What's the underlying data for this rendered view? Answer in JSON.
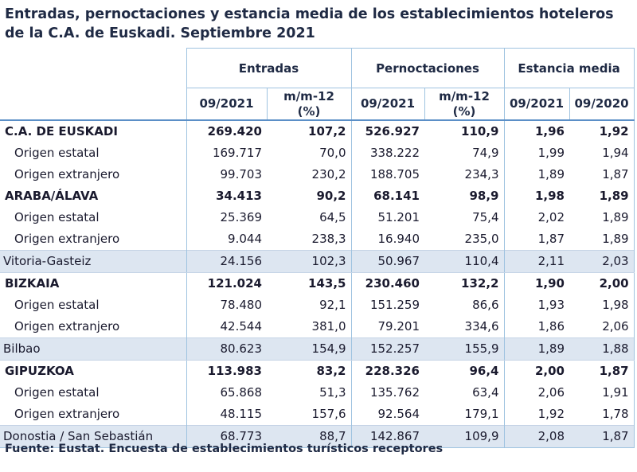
{
  "title_line1": "Entradas, pernoctaciones y estancia media de los establecimientos hoteleros",
  "title_line2": "de la C.A. de Euskadi.  Septiembre 2021",
  "headers": {
    "entradas": "Entradas",
    "pernoctaciones": "Pernoctaciones",
    "estancia": "Estancia media",
    "ent_period": "09/2021",
    "ent_change_l1": "m/m-12",
    "ent_change_l2": "(%)",
    "per_period": "09/2021",
    "per_change_l1": "m/m-12",
    "per_change_l2": "(%)",
    "est_2021": "09/2021",
    "est_2020": "09/2020"
  },
  "rows": [
    {
      "label": "C.A. DE EUSKADI",
      "type": "region",
      "e": "269.420",
      "em": "107,2",
      "p": "526.927",
      "pm": "110,9",
      "s21": "1,96",
      "s20": "1,92"
    },
    {
      "label": "Origen estatal",
      "type": "sub",
      "e": "169.717",
      "em": "70,0",
      "p": "338.222",
      "pm": "74,9",
      "s21": "1,99",
      "s20": "1,94"
    },
    {
      "label": "Origen extranjero",
      "type": "sub",
      "e": "99.703",
      "em": "230,2",
      "p": "188.705",
      "pm": "234,3",
      "s21": "1,89",
      "s20": "1,87"
    },
    {
      "label": "ARABA/ÁLAVA",
      "type": "region",
      "e": "34.413",
      "em": "90,2",
      "p": "68.141",
      "pm": "98,9",
      "s21": "1,98",
      "s20": "1,89"
    },
    {
      "label": "Origen estatal",
      "type": "sub",
      "e": "25.369",
      "em": "64,5",
      "p": "51.201",
      "pm": "75,4",
      "s21": "2,02",
      "s20": "1,89"
    },
    {
      "label": "Origen extranjero",
      "type": "sub",
      "e": "9.044",
      "em": "238,3",
      "p": "16.940",
      "pm": "235,0",
      "s21": "1,87",
      "s20": "1,89"
    },
    {
      "label": "Vitoria-Gasteiz",
      "type": "city",
      "e": "24.156",
      "em": "102,3",
      "p": "50.967",
      "pm": "110,4",
      "s21": "2,11",
      "s20": "2,03"
    },
    {
      "label": "BIZKAIA",
      "type": "region",
      "e": "121.024",
      "em": "143,5",
      "p": "230.460",
      "pm": "132,2",
      "s21": "1,90",
      "s20": "2,00"
    },
    {
      "label": "Origen estatal",
      "type": "sub",
      "e": "78.480",
      "em": "92,1",
      "p": "151.259",
      "pm": "86,6",
      "s21": "1,93",
      "s20": "1,98"
    },
    {
      "label": "Origen extranjero",
      "type": "sub",
      "e": "42.544",
      "em": "381,0",
      "p": "79.201",
      "pm": "334,6",
      "s21": "1,86",
      "s20": "2,06"
    },
    {
      "label": "Bilbao",
      "type": "city",
      "e": "80.623",
      "em": "154,9",
      "p": "152.257",
      "pm": "155,9",
      "s21": "1,89",
      "s20": "1,88"
    },
    {
      "label": "GIPUZKOA",
      "type": "region",
      "e": "113.983",
      "em": "83,2",
      "p": "228.326",
      "pm": "96,4",
      "s21": "2,00",
      "s20": "1,87"
    },
    {
      "label": "Origen estatal",
      "type": "sub",
      "e": "65.868",
      "em": "51,3",
      "p": "135.762",
      "pm": "63,4",
      "s21": "2,06",
      "s20": "1,91"
    },
    {
      "label": "Origen extranjero",
      "type": "sub",
      "e": "48.115",
      "em": "157,6",
      "p": "92.564",
      "pm": "179,1",
      "s21": "1,92",
      "s20": "1,78"
    },
    {
      "label": "Donostia / San Sebastián",
      "type": "city",
      "e": "68.773",
      "em": "88,7",
      "p": "142.867",
      "pm": "109,9",
      "s21": "2,08",
      "s20": "1,87"
    }
  ],
  "source": "Fuente: Eustat. Encuesta de establecimientos turísticos receptores",
  "colors": {
    "city_row_bg": "#dde6f1",
    "border": "#9fc3e0",
    "text": "#1f2a44"
  }
}
